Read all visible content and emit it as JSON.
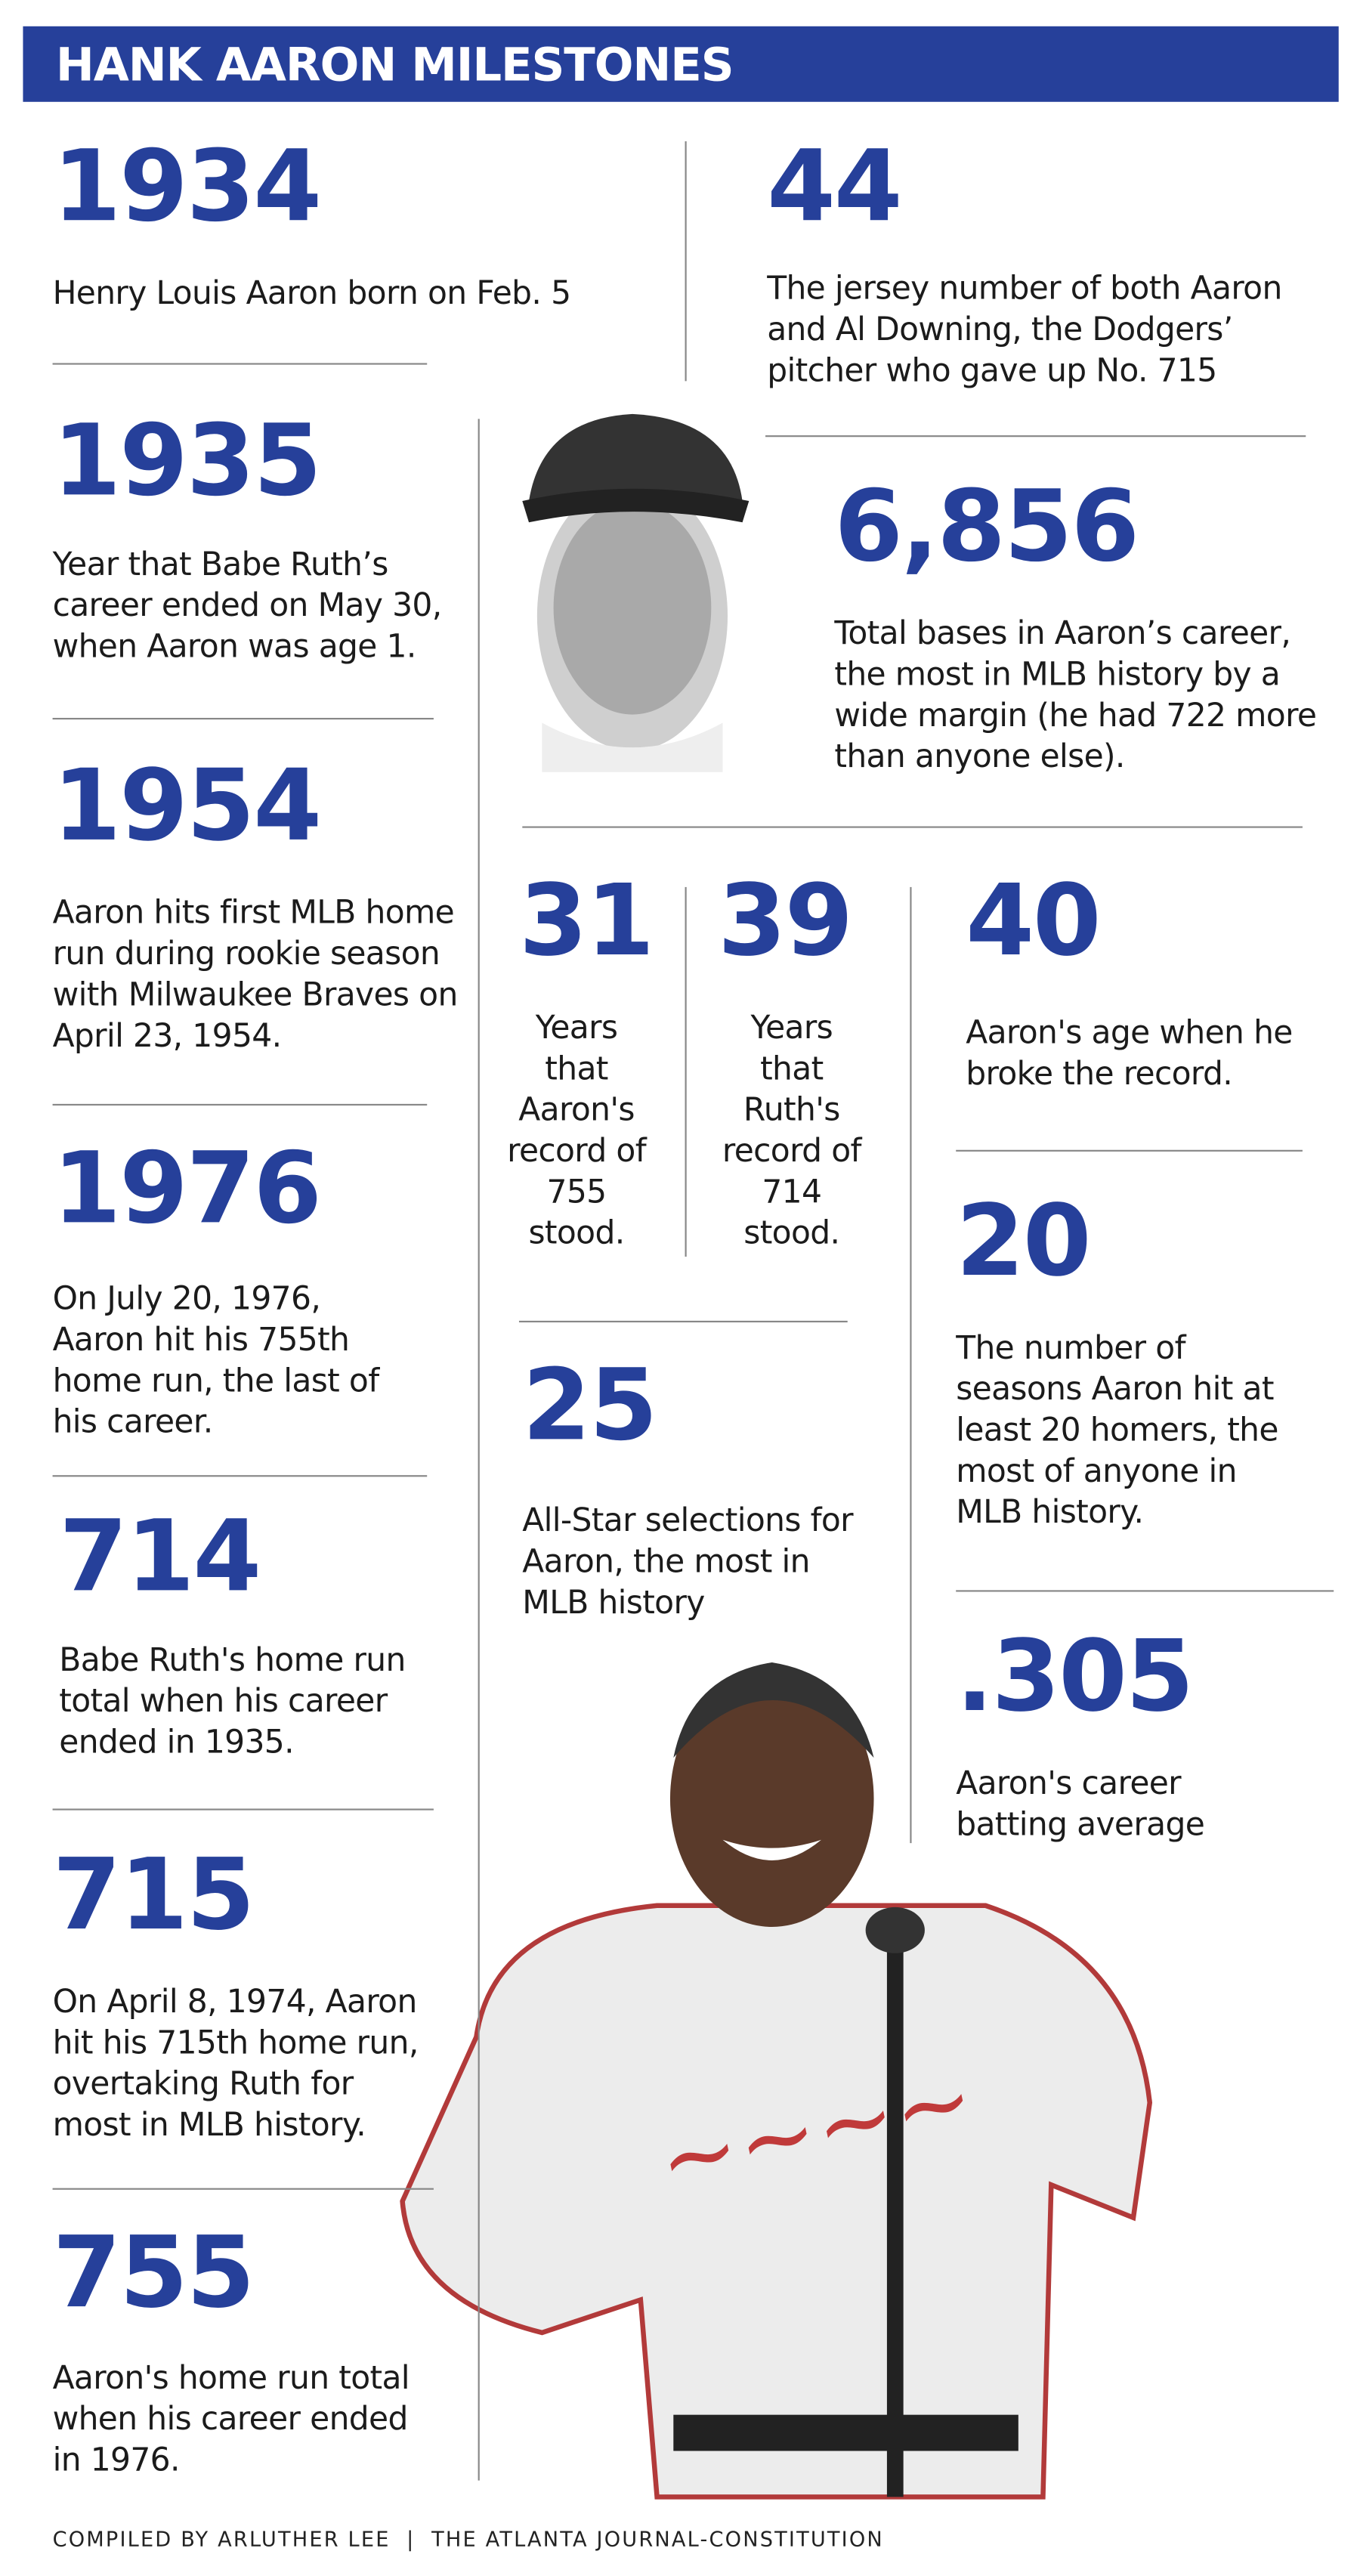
{
  "header": {
    "title": "HANK AARON MILESTONES"
  },
  "items": [
    {
      "number": "1934",
      "text": "Henry Louis Aaron born on Feb. 5"
    },
    {
      "number": "1935",
      "text": "Year that Babe Ruth’s career ended on May 30, when Aaron was age 1."
    },
    {
      "number": "1954",
      "text": "Aaron hits first MLB home run during rookie season with Milwaukee Braves on April 23, 1954."
    },
    {
      "number": "1976",
      "text": "On July 20, 1976, Aaron hit his 755th home run, the last of his career."
    },
    {
      "number": "714",
      "text": "Babe Ruth's home run total when his career ended in 1935."
    },
    {
      "number": "715",
      "text": "On April 8, 1974, Aaron hit his 715th home run, overtaking Ruth for most in MLB history."
    },
    {
      "number": "755",
      "text": "Aaron's home run total when his career ended in 1976."
    },
    {
      "number": "44",
      "text": "The jersey number of both Aaron and Al Downing, the Dodgers’ pitcher who gave up No. 715"
    },
    {
      "number": "6,856",
      "text": "Total bases in Aaron’s career, the most in MLB history by a wide margin (he had 722 more than anyone else)."
    },
    {
      "number": "31",
      "text": "Years that Aaron's record of 755 stood."
    },
    {
      "number": "39",
      "text": "Years that Ruth's record of 714 stood."
    },
    {
      "number": "40",
      "text": "Aaron's age when he broke the record."
    },
    {
      "number": "25",
      "text": "All-Star selections for Aaron, the most in MLB history"
    },
    {
      "number": "20",
      "text": "The number of seasons Aaron hit at least 20 homers, the most of anyone in MLB history."
    },
    {
      "number": ".305",
      "text": "Aaron's career batting average"
    }
  ],
  "footer": {
    "credit": "COMPILED BY ARLUTHER LEE  |  THE ATLANTA JOURNAL-CONSTITUTION"
  }
}
